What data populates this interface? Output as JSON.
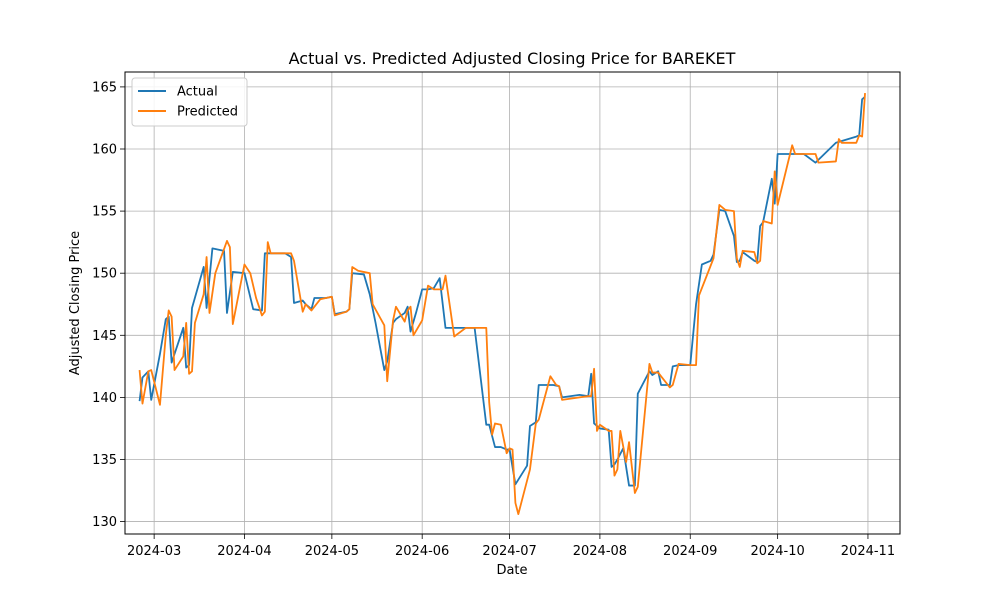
{
  "chart_data": {
    "type": "line",
    "title": "Actual vs. Predicted Adjusted Closing Price for BAREKET",
    "xlabel": "Date",
    "ylabel": "Adjusted Closing Price",
    "grid": true,
    "legend_position": "top-left",
    "xlim": [
      "2024-02-20",
      "2024-11-12"
    ],
    "ylim": [
      129,
      166.2
    ],
    "x_ticks": [
      {
        "date": "2024-03-01",
        "label": "2024-03"
      },
      {
        "date": "2024-04-01",
        "label": "2024-04"
      },
      {
        "date": "2024-05-01",
        "label": "2024-05"
      },
      {
        "date": "2024-06-01",
        "label": "2024-06"
      },
      {
        "date": "2024-07-01",
        "label": "2024-07"
      },
      {
        "date": "2024-08-01",
        "label": "2024-08"
      },
      {
        "date": "2024-09-01",
        "label": "2024-09"
      },
      {
        "date": "2024-10-01",
        "label": "2024-10"
      },
      {
        "date": "2024-11-01",
        "label": "2024-11"
      }
    ],
    "y_ticks": [
      130,
      135,
      140,
      145,
      150,
      155,
      160,
      165
    ],
    "series": [
      {
        "name": "Actual",
        "color": "#1f77b4",
        "points": [
          [
            "2024-02-25",
            139.7
          ],
          [
            "2024-02-26",
            141.6
          ],
          [
            "2024-02-28",
            142.1
          ],
          [
            "2024-02-29",
            139.8
          ],
          [
            "2024-03-03",
            143.5
          ],
          [
            "2024-03-05",
            146.3
          ],
          [
            "2024-03-06",
            146.5
          ],
          [
            "2024-03-07",
            142.8
          ],
          [
            "2024-03-11",
            145.6
          ],
          [
            "2024-03-12",
            142.4
          ],
          [
            "2024-03-13",
            142.6
          ],
          [
            "2024-03-14",
            147.2
          ],
          [
            "2024-03-18",
            150.5
          ],
          [
            "2024-03-19",
            147.2
          ],
          [
            "2024-03-21",
            152.0
          ],
          [
            "2024-03-25",
            151.8
          ],
          [
            "2024-03-26",
            146.8
          ],
          [
            "2024-03-28",
            150.1
          ],
          [
            "2024-04-01",
            150.0
          ],
          [
            "2024-04-04",
            147.1
          ],
          [
            "2024-04-07",
            147.0
          ],
          [
            "2024-04-08",
            151.6
          ],
          [
            "2024-04-10",
            151.6
          ],
          [
            "2024-04-15",
            151.6
          ],
          [
            "2024-04-17",
            151.3
          ],
          [
            "2024-04-18",
            147.6
          ],
          [
            "2024-04-21",
            147.8
          ],
          [
            "2024-04-22",
            147.5
          ],
          [
            "2024-04-24",
            147.1
          ],
          [
            "2024-04-25",
            148.0
          ],
          [
            "2024-04-29",
            148.0
          ],
          [
            "2024-05-01",
            148.1
          ],
          [
            "2024-05-02",
            146.7
          ],
          [
            "2024-05-06",
            146.9
          ],
          [
            "2024-05-07",
            147.1
          ],
          [
            "2024-05-08",
            150.0
          ],
          [
            "2024-05-12",
            149.9
          ],
          [
            "2024-05-14",
            148.3
          ],
          [
            "2024-05-16",
            146.0
          ],
          [
            "2024-05-19",
            142.2
          ],
          [
            "2024-05-20",
            142.9
          ],
          [
            "2024-05-22",
            146.0
          ],
          [
            "2024-05-23",
            146.3
          ],
          [
            "2024-05-26",
            146.8
          ],
          [
            "2024-05-27",
            147.3
          ],
          [
            "2024-05-28",
            145.3
          ],
          [
            "2024-05-30",
            146.9
          ],
          [
            "2024-06-01",
            148.7
          ],
          [
            "2024-06-03",
            148.7
          ],
          [
            "2024-06-05",
            148.8
          ],
          [
            "2024-06-07",
            149.6
          ],
          [
            "2024-06-09",
            145.6
          ],
          [
            "2024-06-12",
            145.6
          ],
          [
            "2024-06-16",
            145.6
          ],
          [
            "2024-06-19",
            145.6
          ],
          [
            "2024-06-23",
            137.8
          ],
          [
            "2024-06-24",
            137.8
          ],
          [
            "2024-06-26",
            136.0
          ],
          [
            "2024-06-28",
            136.0
          ],
          [
            "2024-06-30",
            135.8
          ],
          [
            "2024-07-01",
            135.8
          ],
          [
            "2024-07-03",
            133.0
          ],
          [
            "2024-07-07",
            134.5
          ],
          [
            "2024-07-08",
            137.7
          ],
          [
            "2024-07-10",
            138.0
          ],
          [
            "2024-07-11",
            141.0
          ],
          [
            "2024-07-16",
            141.0
          ],
          [
            "2024-07-18",
            140.9
          ],
          [
            "2024-07-19",
            140.0
          ],
          [
            "2024-07-25",
            140.2
          ],
          [
            "2024-07-28",
            140.1
          ],
          [
            "2024-07-29",
            141.9
          ],
          [
            "2024-07-30",
            137.9
          ],
          [
            "2024-08-01",
            137.5
          ],
          [
            "2024-08-04",
            137.4
          ],
          [
            "2024-08-05",
            134.4
          ],
          [
            "2024-08-06",
            134.6
          ],
          [
            "2024-08-07",
            135.0
          ],
          [
            "2024-08-09",
            135.9
          ],
          [
            "2024-08-11",
            132.9
          ],
          [
            "2024-08-13",
            132.9
          ],
          [
            "2024-08-14",
            140.3
          ],
          [
            "2024-08-18",
            142.1
          ],
          [
            "2024-08-19",
            141.8
          ],
          [
            "2024-08-21",
            142.1
          ],
          [
            "2024-08-22",
            141.0
          ],
          [
            "2024-08-25",
            141.0
          ],
          [
            "2024-08-26",
            142.5
          ],
          [
            "2024-08-28",
            142.6
          ],
          [
            "2024-09-01",
            142.6
          ],
          [
            "2024-09-03",
            147.5
          ],
          [
            "2024-09-05",
            150.7
          ],
          [
            "2024-09-08",
            151.0
          ],
          [
            "2024-09-09",
            151.5
          ],
          [
            "2024-09-11",
            155.1
          ],
          [
            "2024-09-13",
            155.0
          ],
          [
            "2024-09-16",
            153.0
          ],
          [
            "2024-09-17",
            150.9
          ],
          [
            "2024-09-18",
            151.0
          ],
          [
            "2024-09-19",
            151.7
          ],
          [
            "2024-09-23",
            151.0
          ],
          [
            "2024-09-24",
            150.9
          ],
          [
            "2024-09-25",
            153.8
          ],
          [
            "2024-09-26",
            154.1
          ],
          [
            "2024-09-29",
            157.6
          ],
          [
            "2024-09-30",
            155.6
          ],
          [
            "2024-10-01",
            159.6
          ],
          [
            "2024-10-10",
            159.6
          ],
          [
            "2024-10-14",
            158.9
          ],
          [
            "2024-10-21",
            160.5
          ],
          [
            "2024-10-28",
            161.0
          ],
          [
            "2024-10-29",
            161.1
          ],
          [
            "2024-10-30",
            164.0
          ],
          [
            "2024-10-31",
            164.2
          ]
        ]
      },
      {
        "name": "Predicted",
        "color": "#ff7f0e",
        "points": [
          [
            "2024-02-25",
            142.2
          ],
          [
            "2024-02-26",
            139.5
          ],
          [
            "2024-02-28",
            142.1
          ],
          [
            "2024-02-29",
            142.2
          ],
          [
            "2024-03-03",
            139.4
          ],
          [
            "2024-03-05",
            145.0
          ],
          [
            "2024-03-06",
            147.0
          ],
          [
            "2024-03-07",
            146.5
          ],
          [
            "2024-03-08",
            142.2
          ],
          [
            "2024-03-11",
            143.3
          ],
          [
            "2024-03-12",
            146.0
          ],
          [
            "2024-03-13",
            141.9
          ],
          [
            "2024-03-14",
            142.1
          ],
          [
            "2024-03-15",
            146.0
          ],
          [
            "2024-03-18",
            148.3
          ],
          [
            "2024-03-19",
            151.3
          ],
          [
            "2024-03-20",
            146.8
          ],
          [
            "2024-03-22",
            150.0
          ],
          [
            "2024-03-26",
            152.6
          ],
          [
            "2024-03-27",
            152.1
          ],
          [
            "2024-03-28",
            145.9
          ],
          [
            "2024-04-01",
            150.7
          ],
          [
            "2024-04-03",
            150.0
          ],
          [
            "2024-04-05",
            148.0
          ],
          [
            "2024-04-07",
            146.6
          ],
          [
            "2024-04-08",
            146.9
          ],
          [
            "2024-04-09",
            152.5
          ],
          [
            "2024-04-10",
            151.6
          ],
          [
            "2024-04-17",
            151.6
          ],
          [
            "2024-04-18",
            151.0
          ],
          [
            "2024-04-21",
            146.9
          ],
          [
            "2024-04-22",
            147.5
          ],
          [
            "2024-04-24",
            147.0
          ],
          [
            "2024-04-27",
            147.9
          ],
          [
            "2024-05-01",
            148.1
          ],
          [
            "2024-05-02",
            146.6
          ],
          [
            "2024-05-06",
            146.9
          ],
          [
            "2024-05-07",
            147.1
          ],
          [
            "2024-05-08",
            150.5
          ],
          [
            "2024-05-10",
            150.2
          ],
          [
            "2024-05-14",
            150.0
          ],
          [
            "2024-05-15",
            147.5
          ],
          [
            "2024-05-19",
            145.8
          ],
          [
            "2024-05-20",
            141.3
          ],
          [
            "2024-05-22",
            146.2
          ],
          [
            "2024-05-23",
            147.3
          ],
          [
            "2024-05-26",
            146.1
          ],
          [
            "2024-05-27",
            147.0
          ],
          [
            "2024-05-28",
            147.3
          ],
          [
            "2024-05-29",
            145.0
          ],
          [
            "2024-06-01",
            146.2
          ],
          [
            "2024-06-03",
            149.0
          ],
          [
            "2024-06-05",
            148.7
          ],
          [
            "2024-06-08",
            148.7
          ],
          [
            "2024-06-09",
            149.8
          ],
          [
            "2024-06-12",
            144.9
          ],
          [
            "2024-06-16",
            145.6
          ],
          [
            "2024-06-23",
            145.6
          ],
          [
            "2024-06-24",
            139.6
          ],
          [
            "2024-06-25",
            137.0
          ],
          [
            "2024-06-26",
            137.9
          ],
          [
            "2024-06-28",
            137.8
          ],
          [
            "2024-06-30",
            135.5
          ],
          [
            "2024-07-01",
            135.9
          ],
          [
            "2024-07-02",
            135.8
          ],
          [
            "2024-07-03",
            131.5
          ],
          [
            "2024-07-04",
            130.6
          ],
          [
            "2024-07-08",
            134.2
          ],
          [
            "2024-07-10",
            137.9
          ],
          [
            "2024-07-11",
            138.2
          ],
          [
            "2024-07-15",
            141.7
          ],
          [
            "2024-07-17",
            141.0
          ],
          [
            "2024-07-18",
            140.9
          ],
          [
            "2024-07-19",
            139.8
          ],
          [
            "2024-07-25",
            140.0
          ],
          [
            "2024-07-28",
            140.1
          ],
          [
            "2024-07-29",
            140.1
          ],
          [
            "2024-07-30",
            142.3
          ],
          [
            "2024-07-31",
            137.3
          ],
          [
            "2024-08-01",
            137.8
          ],
          [
            "2024-08-04",
            137.3
          ],
          [
            "2024-08-05",
            137.3
          ],
          [
            "2024-08-06",
            133.7
          ],
          [
            "2024-08-07",
            134.2
          ],
          [
            "2024-08-08",
            137.3
          ],
          [
            "2024-08-10",
            134.8
          ],
          [
            "2024-08-11",
            136.4
          ],
          [
            "2024-08-13",
            132.3
          ],
          [
            "2024-08-14",
            132.8
          ],
          [
            "2024-08-18",
            142.7
          ],
          [
            "2024-08-19",
            142.0
          ],
          [
            "2024-08-21",
            142.0
          ],
          [
            "2024-08-22",
            141.7
          ],
          [
            "2024-08-25",
            140.8
          ],
          [
            "2024-08-26",
            141.0
          ],
          [
            "2024-08-28",
            142.7
          ],
          [
            "2024-09-01",
            142.6
          ],
          [
            "2024-09-03",
            142.6
          ],
          [
            "2024-09-04",
            148.2
          ],
          [
            "2024-09-08",
            150.6
          ],
          [
            "2024-09-09",
            151.2
          ],
          [
            "2024-09-11",
            155.5
          ],
          [
            "2024-09-13",
            155.1
          ],
          [
            "2024-09-16",
            155.0
          ],
          [
            "2024-09-17",
            151.2
          ],
          [
            "2024-09-18",
            150.5
          ],
          [
            "2024-09-19",
            151.8
          ],
          [
            "2024-09-23",
            151.7
          ],
          [
            "2024-09-24",
            150.8
          ],
          [
            "2024-09-25",
            151.0
          ],
          [
            "2024-09-26",
            154.2
          ],
          [
            "2024-09-29",
            154.0
          ],
          [
            "2024-09-30",
            158.2
          ],
          [
            "2024-10-01",
            155.5
          ],
          [
            "2024-10-06",
            160.3
          ],
          [
            "2024-10-07",
            159.6
          ],
          [
            "2024-10-14",
            159.6
          ],
          [
            "2024-10-15",
            158.9
          ],
          [
            "2024-10-21",
            159.0
          ],
          [
            "2024-10-22",
            160.8
          ],
          [
            "2024-10-23",
            160.5
          ],
          [
            "2024-10-28",
            160.5
          ],
          [
            "2024-10-29",
            161.1
          ],
          [
            "2024-10-30",
            161.0
          ],
          [
            "2024-10-31",
            164.5
          ]
        ]
      }
    ]
  }
}
